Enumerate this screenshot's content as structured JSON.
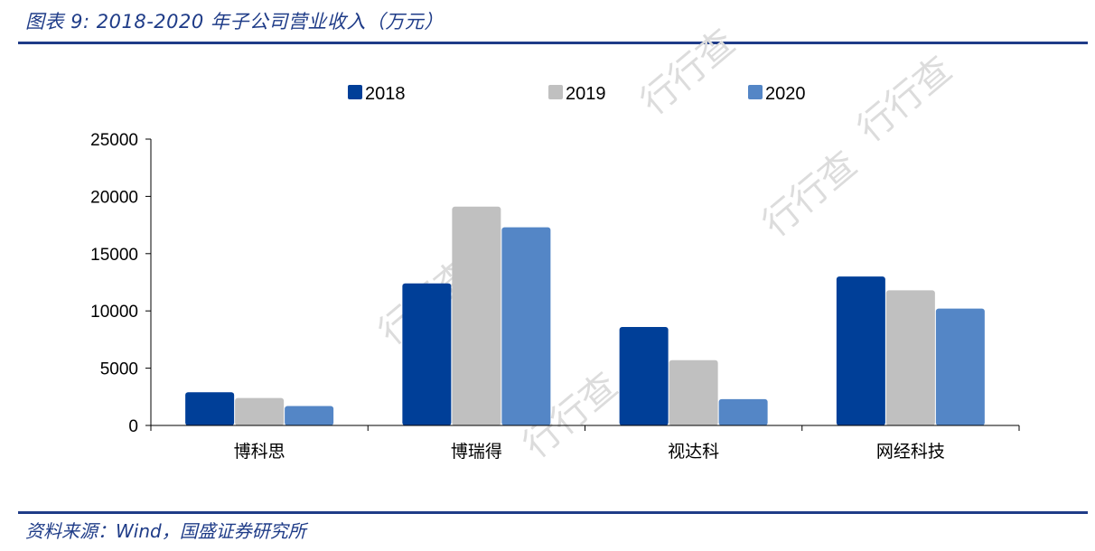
{
  "header": {
    "title": "图表 9:  2018-2020 年子公司营业收入（万元）"
  },
  "footer": {
    "source": "资料来源：Wind，国盛证券研究所"
  },
  "watermark": {
    "text": "行行查"
  },
  "colors": {
    "brand": "#1f3c88",
    "series": [
      "#003f98",
      "#c0c0c0",
      "#5486c6"
    ],
    "axis": "#000000"
  },
  "chart_data": {
    "type": "bar",
    "categories": [
      "博科思",
      "博瑞得",
      "视达科",
      "网经科技"
    ],
    "series": [
      {
        "name": "2018",
        "values": [
          2900,
          12400,
          8600,
          13000
        ]
      },
      {
        "name": "2019",
        "values": [
          2400,
          19100,
          5700,
          11800
        ]
      },
      {
        "name": "2020",
        "values": [
          1700,
          17300,
          2300,
          10200
        ]
      }
    ],
    "yticks": [
      "0",
      "5000",
      "10000",
      "15000",
      "20000",
      "25000"
    ],
    "ylim": [
      0,
      25000
    ],
    "grid": false,
    "legend_position": "top-center"
  }
}
